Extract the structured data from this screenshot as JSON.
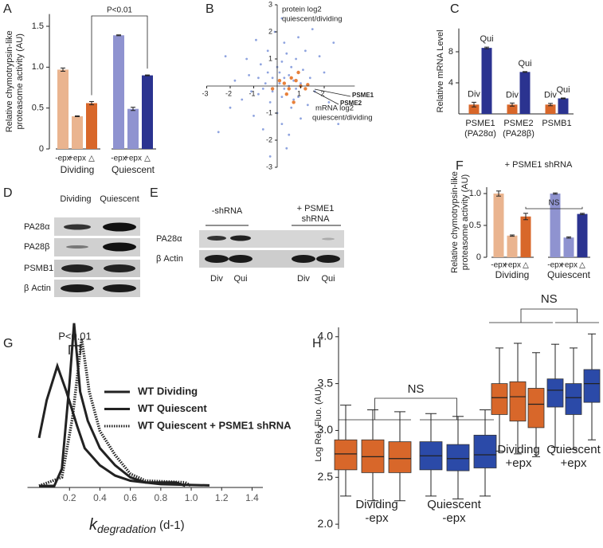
{
  "chart_data": [
    {
      "panel": "A",
      "type": "bar",
      "ylabel": [
        "Relative chymotrypsin-like",
        "proteasome activity (AU)"
      ],
      "categories": [
        "-epx",
        "+epx",
        "△",
        "-epx",
        "+epx",
        "△"
      ],
      "groups": [
        "Dividing",
        "Quiescent"
      ],
      "values": [
        0.97,
        0.4,
        0.56,
        1.39,
        0.49,
        0.9
      ],
      "errors": [
        0.02,
        0.005,
        0.02,
        0.005,
        0.02,
        0.005
      ],
      "colors": [
        "#eab48f",
        "#eab48f",
        "#d8672a",
        "#8f93d0",
        "#8f93d0",
        "#2b3390"
      ],
      "ylim": [
        0,
        1.65
      ],
      "yticks": [
        0,
        0.5,
        {
          "value": 1,
          "label": "1.0"
        },
        1.5
      ],
      "annotation": "P<0.01"
    },
    {
      "panel": "B",
      "type": "scatter",
      "ylabel": [
        "protein log2",
        "quiescent/dividing"
      ],
      "xlabel": [
        "mRNA log2",
        "quiescent/dividing"
      ],
      "xlim": [
        -3,
        3.3
      ],
      "ylim": [
        -3,
        3
      ],
      "xticks": [
        -3,
        -2,
        -1,
        1,
        2
      ],
      "yticks": [
        -3,
        -2,
        -1,
        1,
        2,
        3
      ],
      "series": [
        {
          "color": "#8ea3df",
          "x": [
            -0.2,
            0.1,
            0.3,
            0.5,
            -0.5,
            0.7,
            0.2,
            -0.8,
            0.9,
            0.4,
            -0.3,
            1.1,
            -1.2,
            0.0,
            0.6,
            1.4,
            -0.7,
            0.8,
            -1.5,
            0.3,
            1.6,
            -0.4,
            0.2,
            -1.0,
            1.2,
            -1.8,
            2.0,
            0.5,
            -0.9,
            1.0,
            -0.1,
            0.9,
            -2.0,
            2.2,
            0.4,
            -1.3,
            1.8,
            -0.6,
            0.1,
            0.6,
            -0.2,
            0.3,
            0.8,
            -0.4,
            0.0,
            1.3,
            -1.1,
            0.7,
            -0.6,
            0.5,
            2.4,
            -2.2,
            1.5,
            -0.3,
            0.2,
            2.6,
            -2.5,
            1.0,
            0.2,
            -0.8
          ],
          "y": [
            0.3,
            0.5,
            -0.1,
            0.4,
            0.1,
            0.2,
            0.9,
            -0.3,
            -0.4,
            1.2,
            -0.6,
            0.6,
            0.4,
            -1.0,
            -0.8,
            0.3,
            0.8,
            1.0,
            -0.5,
            1.6,
            -0.2,
            1.3,
            -1.4,
            -1.1,
            1.3,
            0.2,
            0.5,
            -1.8,
            1.7,
            -1.2,
            2.0,
            1.8,
            -0.8,
            -0.6,
            -2.3,
            1.0,
            1.1,
            -1.6,
            0.1,
            0.7,
            -0.2,
            0.3,
            -0.1,
            0.5,
            0.7,
            -0.7,
            -0.2,
            -0.5,
            -0.1,
            0.0,
            1.6,
            1.1,
            2.1,
            -2.6,
            2.5,
            -1.4,
            -1.7,
            0.1,
            -0.4,
            0.3
          ]
        },
        {
          "color": "#e8803a",
          "x": [
            0.3,
            0.5,
            0.8,
            1.0,
            0.6,
            1.3,
            1.2,
            0.4,
            0.9,
            -0.2,
            0.7,
            0.1
          ],
          "y": [
            0.1,
            -0.1,
            0.2,
            0.0,
            0.3,
            0.05,
            -0.1,
            -0.3,
            0.5,
            -0.1,
            -0.6,
            0.2
          ]
        }
      ],
      "annotations": [
        "PSME1",
        "PSME2"
      ]
    },
    {
      "panel": "C",
      "type": "bar",
      "ylabel": [
        "Relative mRNA Level"
      ],
      "categories": [
        [
          "PSME1",
          "(PA28α)"
        ],
        [
          "PSME2",
          "(PA28β)"
        ],
        [
          "PSMB1"
        ]
      ],
      "series": [
        {
          "name": "Div",
          "color": "#d8672a",
          "values": [
            1.2,
            1.2,
            1.2
          ],
          "errors": [
            0.3,
            0.2,
            0.15
          ]
        },
        {
          "name": "Qui",
          "color": "#2b3390",
          "values": [
            8.5,
            5.4,
            2.0
          ],
          "errors": [
            0.1,
            0.05,
            0.05
          ]
        }
      ],
      "ylim": [
        0,
        11
      ],
      "yticks": [
        4,
        8
      ]
    },
    {
      "panel": "F",
      "type": "bar",
      "title": "+ PSME1 shRNA",
      "ylabel": [
        "Relative chymotrypsin-like",
        "proteasome activity (AU)"
      ],
      "categories": [
        "-epx",
        "+epx",
        "△",
        "-epx",
        "+epx",
        "△"
      ],
      "groups": [
        "Dividing",
        "Quiescent"
      ],
      "values": [
        1.0,
        0.34,
        0.64,
        1.0,
        0.31,
        0.68
      ],
      "errors": [
        0.04,
        0.01,
        0.05,
        0.01,
        0.01,
        0.01
      ],
      "colors": [
        "#eab48f",
        "#eab48f",
        "#d8672a",
        "#8f93d0",
        "#8f93d0",
        "#2b3390"
      ],
      "ylim": [
        0,
        1.1
      ],
      "yticks": [
        0,
        0.5,
        {
          "value": 1,
          "label": "1.0"
        }
      ],
      "annotation": "NS"
    },
    {
      "panel": "G",
      "type": "line",
      "xlabel": "k",
      "xlabel_subscript": "degradation",
      "xlabel_unit": "(d-1)",
      "xlim": [
        -0.05,
        1.45
      ],
      "ylim": [
        0,
        1
      ],
      "xticks": [
        0.2,
        0.4,
        0.6,
        0.8,
        {
          "value": 1,
          "label": "1.0"
        },
        1.2,
        1.4
      ],
      "annotation": "P<0.01",
      "series": [
        {
          "name": "WT Dividing",
          "color": "#d8672a",
          "style": "solid",
          "x": [
            0.0,
            0.05,
            0.12,
            0.18,
            0.25,
            0.3,
            0.4,
            0.5,
            0.6,
            0.7,
            0.8,
            1.0,
            1.12
          ],
          "values": [
            0.28,
            0.5,
            0.7,
            0.55,
            0.35,
            0.22,
            0.12,
            0.06,
            0.03,
            0.02,
            0.01,
            0.005,
            0.003
          ]
        },
        {
          "name": "WT Quiescent",
          "color": "#2b3390",
          "style": "solid",
          "x": [
            0.0,
            0.1,
            0.15,
            0.2,
            0.23,
            0.27,
            0.32,
            0.4,
            0.5,
            0.6,
            0.7,
            0.9,
            0.96
          ],
          "values": [
            0.0,
            0.0,
            0.1,
            0.6,
            0.95,
            0.55,
            0.38,
            0.22,
            0.12,
            0.05,
            0.02,
            0.02,
            0.0
          ]
        },
        {
          "name": "WT Quiescent + PSME1 shRNA",
          "color": "#3a3f9e",
          "style": "dotted",
          "x": [
            0.0,
            0.15,
            0.22,
            0.28,
            0.33,
            0.4,
            0.5,
            0.6,
            0.7,
            0.96,
            1.0
          ],
          "values": [
            0.0,
            0.05,
            0.4,
            0.86,
            0.55,
            0.32,
            0.18,
            0.07,
            0.03,
            0.02,
            0.0
          ]
        }
      ]
    },
    {
      "panel": "H",
      "type": "box",
      "ylabel": [
        "Log Rel. Fluo. (AU)"
      ],
      "ylim": [
        1.95,
        4.1
      ],
      "yticks": [
        {
          "value": 2,
          "label": "2.0"
        },
        2.5,
        {
          "value": 3,
          "label": "3.0"
        },
        3.5,
        {
          "value": 4,
          "label": "4.0"
        }
      ],
      "annotations": [
        "NS",
        "NS"
      ],
      "groups": [
        {
          "label": [
            "Dividing",
            "-epx"
          ],
          "color": "#d8672a",
          "boxes": [
            {
              "whislo": 2.3,
              "q1": 2.58,
              "med": 2.75,
              "q3": 2.9,
              "whishi": 3.27
            },
            {
              "whislo": 2.25,
              "q1": 2.55,
              "med": 2.72,
              "q3": 2.9,
              "whishi": 3.22
            },
            {
              "whislo": 2.25,
              "q1": 2.55,
              "med": 2.7,
              "q3": 2.88,
              "whishi": 3.2
            }
          ]
        },
        {
          "label": [
            "Quiescent",
            "-epx"
          ],
          "color": "#2b4aa8",
          "boxes": [
            {
              "whislo": 2.3,
              "q1": 2.58,
              "med": 2.73,
              "q3": 2.88,
              "whishi": 3.18
            },
            {
              "whislo": 2.27,
              "q1": 2.57,
              "med": 2.7,
              "q3": 2.85,
              "whishi": 3.15
            },
            {
              "whislo": 2.3,
              "q1": 2.6,
              "med": 2.74,
              "q3": 2.95,
              "whishi": 3.22
            }
          ]
        },
        {
          "label": [
            "Dividing",
            "+epx"
          ],
          "color": "#d8672a",
          "boxes": [
            {
              "whislo": 2.78,
              "q1": 3.17,
              "med": 3.35,
              "q3": 3.5,
              "whishi": 3.88
            },
            {
              "whislo": 2.75,
              "q1": 3.1,
              "med": 3.36,
              "q3": 3.52,
              "whishi": 3.93
            },
            {
              "whislo": 2.72,
              "q1": 3.03,
              "med": 3.28,
              "q3": 3.45,
              "whishi": 3.83
            }
          ]
        },
        {
          "label": [
            "Quiescent",
            "+epx"
          ],
          "color": "#2b4aa8",
          "boxes": [
            {
              "whislo": 2.82,
              "q1": 3.25,
              "med": 3.43,
              "q3": 3.55,
              "whishi": 3.92
            },
            {
              "whislo": 2.8,
              "q1": 3.17,
              "med": 3.35,
              "q3": 3.5,
              "whishi": 3.88
            },
            {
              "whislo": 2.9,
              "q1": 3.3,
              "med": 3.5,
              "q3": 3.65,
              "whishi": 4.03
            }
          ]
        }
      ]
    }
  ],
  "blots": [
    {
      "panel": "D",
      "columns": [
        "Dividing",
        "Quiescent"
      ],
      "rows": [
        "PA28α",
        "PA28β",
        "PSMB1",
        "β Actin"
      ]
    },
    {
      "panel": "E",
      "column_groups": [
        [
          "-shRNA"
        ],
        [
          "+ PSME1",
          "shRNA"
        ]
      ],
      "rows": [
        "PA28α",
        "β Actin"
      ],
      "lanes": [
        "Div",
        "Qui",
        "Div",
        "Qui"
      ]
    }
  ]
}
